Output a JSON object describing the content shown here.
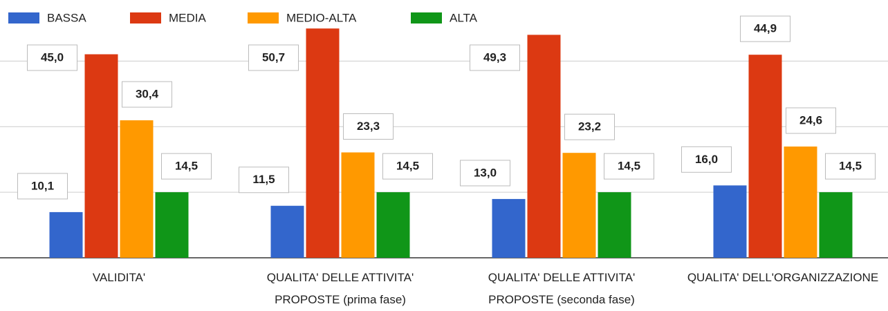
{
  "chart_data": {
    "type": "bar",
    "categories": [
      "VALIDITA'",
      "QUALITA' DELLE ATTIVITA' PROPOSTE (prima fase)",
      "QUALITA' DELLE ATTIVITA' PROPOSTE (seconda fase)",
      "QUALITA' DELL'ORGANIZZAZIONE"
    ],
    "series": [
      {
        "name": "BASSA",
        "color": "#3366cc",
        "values": [
          10.1,
          11.5,
          13.0,
          16.0
        ],
        "value_labels": [
          "10,1",
          "11,5",
          "13,0",
          "16,0"
        ]
      },
      {
        "name": "MEDIA",
        "color": "#dc3912",
        "values": [
          45.0,
          50.7,
          49.3,
          44.9
        ],
        "value_labels": [
          "45,0",
          "50,7",
          "49,3",
          "44,9"
        ]
      },
      {
        "name": "MEDIO-ALTA",
        "color": "#ff9900",
        "values": [
          30.4,
          23.3,
          23.2,
          24.6
        ],
        "value_labels": [
          "30,4",
          "23,3",
          "23,2",
          "24,6"
        ]
      },
      {
        "name": "ALTA",
        "color": "#109618",
        "values": [
          14.5,
          14.5,
          14.5,
          14.5
        ],
        "value_labels": [
          "14,5",
          "14,5",
          "14,5",
          "14,5"
        ]
      }
    ],
    "ylim": [
      0,
      57
    ],
    "yticks": [
      0,
      14.5,
      29,
      43.5
    ],
    "grid": true,
    "legend": "top"
  }
}
